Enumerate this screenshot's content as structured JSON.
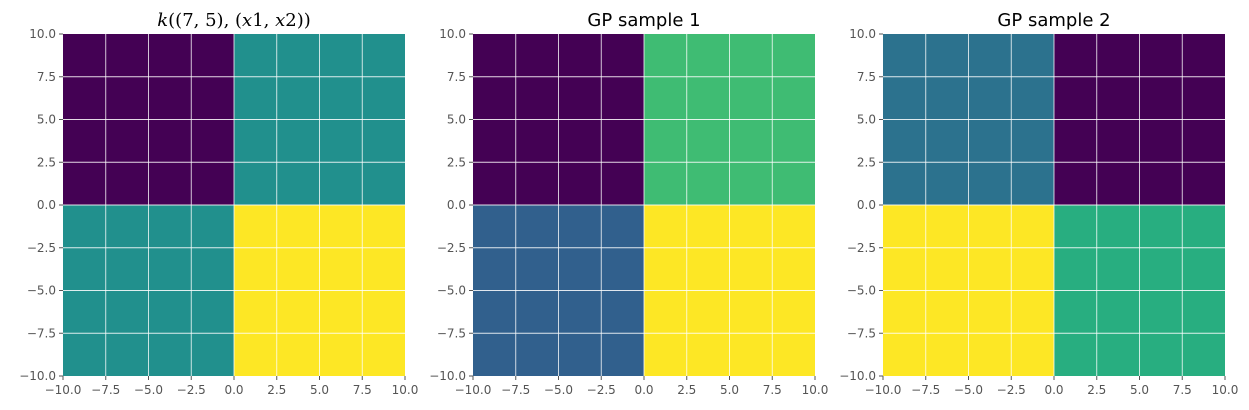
{
  "chart_data": [
    {
      "type": "heatmap",
      "title": "k((7,5),(x1,x2))",
      "title_parts": {
        "k": "k",
        "open": "((7, 5), (",
        "x1_letter": "x",
        "x1_num": "1",
        "sep": ", ",
        "x2_letter": "x",
        "x2_num": "2",
        "close": "))"
      },
      "xlim": [
        -10,
        10
      ],
      "ylim": [
        -10,
        10
      ],
      "grid": true,
      "xticks": [
        "−10.0",
        "−7.5",
        "−5.0",
        "−2.5",
        "0.0",
        "2.5",
        "5.0",
        "7.5",
        "10.0"
      ],
      "yticks": [
        "10.0",
        "7.5",
        "5.0",
        "2.5",
        "0.0",
        "−2.5",
        "−5.0",
        "−7.5",
        "−10.0"
      ],
      "cells": [
        {
          "x": [
            -10,
            0
          ],
          "y": [
            0,
            10
          ],
          "color": "#440154"
        },
        {
          "x": [
            0,
            10
          ],
          "y": [
            0,
            10
          ],
          "color": "#21908d"
        },
        {
          "x": [
            -10,
            0
          ],
          "y": [
            -10,
            0
          ],
          "color": "#21908d"
        },
        {
          "x": [
            0,
            10
          ],
          "y": [
            -10,
            0
          ],
          "color": "#fde725"
        }
      ]
    },
    {
      "type": "heatmap",
      "title": "GP sample 1",
      "xlim": [
        -10,
        10
      ],
      "ylim": [
        -10,
        10
      ],
      "grid": true,
      "xticks": [
        "−10.0",
        "−7.5",
        "−5.0",
        "−2.5",
        "0.0",
        "2.5",
        "5.0",
        "7.5",
        "10.0"
      ],
      "yticks": [
        "10.0",
        "7.5",
        "5.0",
        "2.5",
        "0.0",
        "−2.5",
        "−5.0",
        "−7.5",
        "−10.0"
      ],
      "cells": [
        {
          "x": [
            -10,
            0
          ],
          "y": [
            0,
            10
          ],
          "color": "#440154"
        },
        {
          "x": [
            0,
            10
          ],
          "y": [
            0,
            10
          ],
          "color": "#3fbc73"
        },
        {
          "x": [
            -10,
            0
          ],
          "y": [
            -10,
            0
          ],
          "color": "#31608d"
        },
        {
          "x": [
            0,
            10
          ],
          "y": [
            -10,
            0
          ],
          "color": "#fde725"
        }
      ]
    },
    {
      "type": "heatmap",
      "title": "GP sample 2",
      "xlim": [
        -10,
        10
      ],
      "ylim": [
        -10,
        10
      ],
      "grid": true,
      "xticks": [
        "−10.0",
        "−7.5",
        "−5.0",
        "−2.5",
        "0.0",
        "2.5",
        "5.0",
        "7.5",
        "10.0"
      ],
      "yticks": [
        "10.0",
        "7.5",
        "5.0",
        "2.5",
        "0.0",
        "−2.5",
        "−5.0",
        "−7.5",
        "−10.0"
      ],
      "cells": [
        {
          "x": [
            -10,
            0
          ],
          "y": [
            0,
            10
          ],
          "color": "#2c728e"
        },
        {
          "x": [
            0,
            10
          ],
          "y": [
            0,
            10
          ],
          "color": "#440154"
        },
        {
          "x": [
            -10,
            0
          ],
          "y": [
            -10,
            0
          ],
          "color": "#fde725"
        },
        {
          "x": [
            0,
            10
          ],
          "y": [
            -10,
            0
          ],
          "color": "#28ae80"
        }
      ]
    }
  ]
}
